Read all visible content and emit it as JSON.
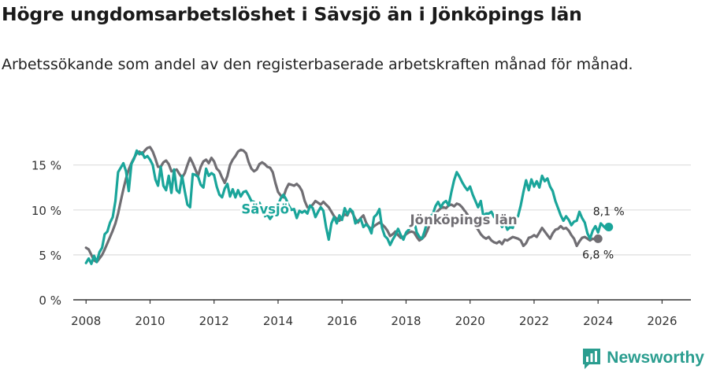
{
  "page": {
    "title": "Högre ungdomsarbetslöshet i Sävsjö än i Jönköpings län",
    "subtitle": "Arbetssökande som andel av den registerbaserade arbetskraften månad för månad.",
    "brand": "Newsworthy"
  },
  "colors": {
    "savsjo": "#1aa59a",
    "jonkoping": "#706e73",
    "grid": "#dddddd",
    "axis": "#333333",
    "text": "#333333"
  },
  "chart_data": {
    "type": "line",
    "title": "Högre ungdomsarbetslöshet i Sävsjö än i Jönköpings län",
    "xlabel": "",
    "ylabel": "",
    "xlim": [
      2007.6,
      2026.9
    ],
    "ylim": [
      0,
      15
    ],
    "x_ticks": [
      2008,
      2010,
      2012,
      2014,
      2016,
      2018,
      2020,
      2022,
      2024,
      2026
    ],
    "x_tick_labels": [
      "2008",
      "2010",
      "2012",
      "2014",
      "2016",
      "2018",
      "2020",
      "2022",
      "2024",
      "2026"
    ],
    "y_ticks": [
      0,
      5,
      10,
      15
    ],
    "y_tick_labels": [
      "0 %",
      "5 %",
      "10 %",
      "15 %"
    ],
    "start_year": 2008,
    "start_month": 1,
    "series": [
      {
        "name": "Jönköpings län",
        "label": "Jönköpings län",
        "end_label": "6,8 %",
        "values": [
          5.8,
          5.6,
          5.0,
          4.4,
          4.2,
          4.6,
          5.0,
          5.6,
          6.3,
          7.0,
          7.7,
          8.5,
          9.6,
          11.0,
          12.3,
          13.5,
          14.5,
          15.2,
          15.8,
          16.3,
          16.5,
          16.2,
          16.6,
          16.9,
          17.0,
          16.5,
          15.7,
          14.8,
          14.8,
          15.3,
          15.5,
          15.1,
          14.3,
          14.4,
          14.5,
          14.0,
          13.6,
          14.1,
          15.0,
          15.8,
          15.2,
          14.5,
          13.8,
          14.8,
          15.4,
          15.6,
          15.2,
          15.8,
          15.4,
          14.6,
          14.3,
          13.6,
          13.0,
          13.8,
          15.0,
          15.6,
          16.0,
          16.5,
          16.7,
          16.6,
          16.3,
          15.3,
          14.6,
          14.3,
          14.5,
          15.1,
          15.3,
          15.1,
          14.8,
          14.7,
          14.2,
          13.0,
          12.0,
          11.6,
          11.4,
          12.3,
          12.9,
          12.8,
          12.7,
          12.9,
          12.6,
          12.1,
          11.0,
          10.3,
          10.3,
          10.6,
          11.0,
          10.8,
          10.6,
          10.9,
          10.6,
          10.3,
          9.8,
          9.3,
          9.0,
          8.8,
          9.2,
          9.5,
          9.4,
          10.1,
          9.6,
          9.0,
          8.6,
          9.1,
          9.4,
          8.6,
          8.1,
          7.9,
          8.2,
          8.4,
          8.6,
          8.4,
          8.1,
          7.7,
          7.1,
          7.3,
          7.6,
          7.2,
          6.9,
          7.0,
          7.3,
          7.5,
          7.6,
          7.5,
          7.0,
          6.6,
          6.8,
          7.1,
          7.7,
          8.5,
          9.1,
          9.6,
          9.9,
          10.2,
          10.3,
          10.2,
          10.5,
          10.6,
          10.4,
          10.7,
          10.6,
          10.3,
          9.9,
          9.5,
          8.9,
          8.4,
          8.2,
          7.8,
          7.3,
          7.0,
          6.8,
          7.0,
          6.6,
          6.4,
          6.3,
          6.5,
          6.2,
          6.7,
          6.6,
          6.8,
          7.0,
          6.9,
          6.8,
          6.6,
          6.0,
          6.3,
          6.9,
          7.0,
          7.2,
          7.0,
          7.5,
          8.0,
          7.6,
          7.2,
          6.8,
          7.4,
          7.8,
          7.9,
          8.2,
          7.9,
          8.0,
          7.7,
          7.2,
          6.8,
          6.0,
          6.5,
          6.9,
          7.0,
          6.8,
          6.6,
          6.8,
          6.7,
          6.8
        ]
      },
      {
        "name": "Sävsjö",
        "label": "Sävsjö",
        "end_label": "8,1 %",
        "values": [
          4.1,
          4.6,
          4.0,
          4.9,
          4.2,
          5.3,
          5.8,
          7.3,
          7.6,
          8.6,
          9.2,
          11.0,
          14.2,
          14.7,
          15.2,
          14.3,
          12.1,
          15.1,
          15.7,
          16.6,
          16.2,
          16.4,
          15.8,
          16.0,
          15.6,
          15.0,
          13.4,
          12.7,
          14.8,
          12.7,
          12.2,
          13.8,
          11.9,
          14.5,
          12.2,
          11.9,
          13.8,
          12.1,
          10.6,
          10.3,
          14.0,
          13.9,
          13.7,
          12.8,
          12.5,
          14.6,
          13.8,
          14.1,
          13.9,
          12.6,
          11.7,
          11.4,
          12.4,
          12.9,
          11.5,
          12.3,
          11.4,
          12.2,
          11.5,
          12.0,
          12.1,
          11.6,
          11.0,
          10.9,
          10.4,
          10.8,
          10.2,
          9.3,
          9.5,
          9.0,
          9.4,
          10.0,
          10.5,
          11.3,
          11.7,
          11.2,
          10.5,
          10.0,
          10.1,
          9.1,
          9.9,
          9.7,
          9.9,
          9.6,
          10.5,
          10.2,
          9.2,
          9.8,
          10.3,
          9.9,
          8.1,
          6.7,
          8.5,
          9.2,
          8.5,
          9.4,
          8.9,
          10.2,
          9.5,
          10.1,
          9.8,
          8.5,
          8.8,
          9.0,
          8.1,
          8.4,
          8.1,
          7.4,
          9.2,
          9.5,
          10.1,
          8.0,
          7.1,
          6.8,
          6.1,
          6.7,
          7.2,
          7.9,
          7.2,
          6.7,
          7.5,
          7.8,
          8.5,
          8.8,
          7.5,
          7.0,
          6.8,
          7.7,
          8.8,
          9.3,
          9.5,
          10.4,
          10.9,
          10.3,
          10.8,
          11.0,
          10.5,
          12.0,
          13.3,
          14.2,
          13.7,
          13.1,
          12.6,
          12.2,
          12.6,
          11.7,
          11.0,
          10.3,
          11.0,
          9.3,
          9.6,
          9.6,
          9.8,
          9.2,
          9.0,
          8.9,
          8.1,
          8.6,
          7.8,
          8.1,
          8.0,
          9.0,
          9.3,
          10.5,
          12.0,
          13.3,
          12.2,
          13.4,
          12.6,
          13.2,
          12.5,
          13.8,
          13.2,
          13.5,
          12.6,
          12.1,
          11.0,
          10.2,
          9.4,
          8.8,
          9.3,
          8.9,
          8.3,
          8.7,
          8.8,
          9.8,
          9.1,
          8.6,
          7.4,
          6.8,
          7.7,
          8.2,
          7.5,
          8.5,
          8.2,
          7.9,
          8.1
        ]
      }
    ]
  }
}
